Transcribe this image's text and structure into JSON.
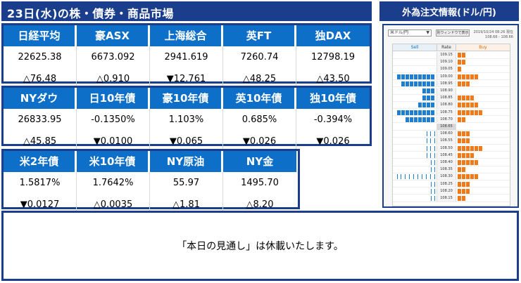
{
  "title": "23日(水)の株・債券・商品市場",
  "panels": [
    {
      "headers": [
        "日経平均",
        "豪ASX",
        "上海総合",
        "英FT",
        "独DAX"
      ],
      "values": [
        "22625.38",
        "6673.092",
        "2941.619",
        "7260.74",
        "12798.19"
      ],
      "changes": [
        "△76.48",
        "△0.910",
        "▼12.761",
        "△48.25",
        "△43.50"
      ]
    },
    {
      "headers": [
        "NYダウ",
        "日10年債",
        "豪10年債",
        "英10年債",
        "独10年債"
      ],
      "values": [
        "26833.95",
        "-0.1350%",
        "1.103%",
        "0.685%",
        "-0.394%"
      ],
      "changes": [
        "△45.85",
        "▼0.0100",
        "▼0.065",
        "▼0.026",
        "▼0.026"
      ]
    },
    {
      "headers": [
        "米2年債",
        "米10年債",
        "NY原油",
        "NY金"
      ],
      "values": [
        "1.5817%",
        "1.7642%",
        "55.97",
        "1495.70"
      ],
      "changes": [
        "▼0.0127",
        "△0.0035",
        "△1.81",
        "△8.20"
      ]
    }
  ],
  "fx": {
    "title": "外為注文情報(ドル/円)",
    "pair": "米ドル/円",
    "window_button": "別ウィンドウで表示",
    "datetime": "2019/10/24 08:26 現在",
    "range": "108.66 - 108.66",
    "columns": {
      "sell": "Sell",
      "rate": "Rate",
      "buy": "Buy"
    },
    "rows": [
      {
        "rate": "109.15",
        "sell": 0,
        "sell_light": 0,
        "buy": 2,
        "buy_light": 0
      },
      {
        "rate": "109.10",
        "sell": 0,
        "sell_light": 0,
        "buy": 2,
        "buy_light": 0
      },
      {
        "rate": "109.05",
        "sell": 0,
        "sell_light": 0,
        "buy": 1,
        "buy_light": 0
      },
      {
        "rate": "109.00",
        "sell": 9,
        "sell_light": 0,
        "buy": 5,
        "buy_light": 0
      },
      {
        "rate": "108.95",
        "sell": 8,
        "sell_light": 0,
        "buy": 3,
        "buy_light": 0
      },
      {
        "rate": "108.90",
        "sell": 3,
        "sell_light": 0,
        "buy": 0,
        "buy_light": 0
      },
      {
        "rate": "108.85",
        "sell": 3,
        "sell_light": 0,
        "buy": 4,
        "buy_light": 0
      },
      {
        "rate": "108.80",
        "sell": 4,
        "sell_light": 0,
        "buy": 5,
        "buy_light": 0
      },
      {
        "rate": "108.75",
        "sell": 9,
        "sell_light": 0,
        "buy": 6,
        "buy_light": 0
      },
      {
        "rate": "108.70",
        "sell": 7,
        "sell_light": 0,
        "buy": 2,
        "buy_light": 0
      },
      {
        "rate": "108.65",
        "sell": 0,
        "sell_light": 0,
        "buy": 0,
        "buy_light": 0
      },
      {
        "rate": "108.60",
        "sell": 0,
        "sell_light": 2,
        "buy": 3,
        "buy_light": 0
      },
      {
        "rate": "108.55",
        "sell": 0,
        "sell_light": 2,
        "buy": 3,
        "buy_light": 0
      },
      {
        "rate": "108.50",
        "sell": 0,
        "sell_light": 2,
        "buy": 6,
        "buy_light": 0
      },
      {
        "rate": "108.45",
        "sell": 0,
        "sell_light": 2,
        "buy": 4,
        "buy_light": 0
      },
      {
        "rate": "108.40",
        "sell": 0,
        "sell_light": 1,
        "buy": 5,
        "buy_light": 0
      },
      {
        "rate": "108.35",
        "sell": 0,
        "sell_light": 1,
        "buy": 2,
        "buy_light": 0
      },
      {
        "rate": "108.30",
        "sell": 0,
        "sell_light": 9,
        "buy": 5,
        "buy_light": 0
      },
      {
        "rate": "108.25",
        "sell": 0,
        "sell_light": 1,
        "buy": 3,
        "buy_light": 0
      },
      {
        "rate": "108.20",
        "sell": 0,
        "sell_light": 1,
        "buy": 3,
        "buy_light": 0
      },
      {
        "rate": "108.15",
        "sell": 0,
        "sell_light": 1,
        "buy": 2,
        "buy_light": 0
      }
    ],
    "current_rate": "108.65"
  },
  "forecast": "「本日の見通し」は休載いたします。"
}
